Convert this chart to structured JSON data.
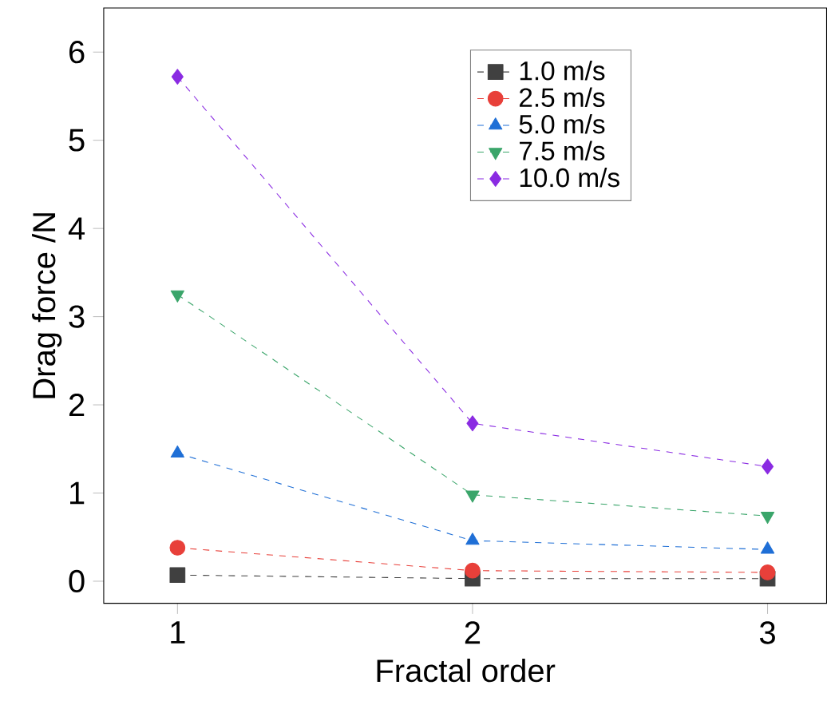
{
  "chart_data": {
    "type": "line",
    "xlabel": "Fractal order",
    "ylabel": "Drag force /N",
    "x": [
      1,
      2,
      3
    ],
    "series": [
      {
        "name": "1.0 m/s",
        "color": "#404040",
        "marker": "square",
        "values": [
          0.07,
          0.03,
          0.03
        ]
      },
      {
        "name": "2.5 m/s",
        "color": "#e8403a",
        "marker": "circle",
        "values": [
          0.38,
          0.12,
          0.1
        ]
      },
      {
        "name": "5.0 m/s",
        "color": "#1f6fd6",
        "marker": "triangle",
        "values": [
          1.45,
          0.46,
          0.36
        ]
      },
      {
        "name": "7.5 m/s",
        "color": "#3aa56a",
        "marker": "triangle-down",
        "values": [
          3.25,
          0.98,
          0.74
        ]
      },
      {
        "name": "10.0 m/s",
        "color": "#8a2be2",
        "marker": "diamond",
        "values": [
          5.72,
          1.79,
          1.3
        ]
      }
    ],
    "line_style": "dashed",
    "xlim": [
      0.75,
      3.2
    ],
    "ylim": [
      -0.25,
      6.5
    ],
    "xticks": [
      1,
      2,
      3
    ],
    "yticks": [
      0,
      1,
      2,
      3,
      4,
      5,
      6
    ],
    "grid": false,
    "legend": "top right"
  }
}
